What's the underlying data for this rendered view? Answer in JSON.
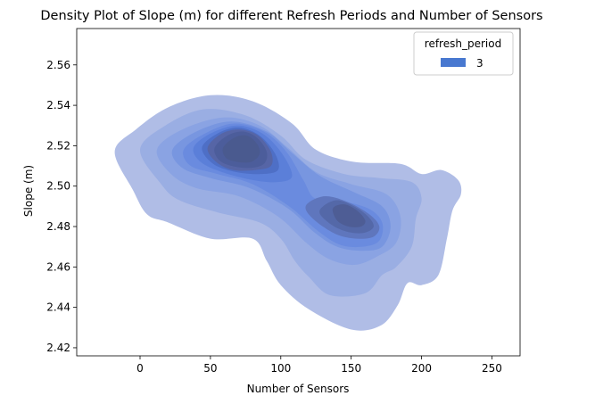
{
  "chart_data": {
    "type": "kde-density",
    "title": "Density Plot of Slope (m) for different Refresh Periods and Number of Sensors",
    "xlabel": "Number of Sensors",
    "ylabel": "Slope (m)",
    "xlim": [
      -45,
      270
    ],
    "ylim": [
      2.416,
      2.578
    ],
    "xticks": [
      0,
      50,
      100,
      150,
      200,
      250
    ],
    "yticks": [
      2.42,
      2.44,
      2.46,
      2.48,
      2.5,
      2.52,
      2.54,
      2.56
    ],
    "grid": false,
    "legend": {
      "title": "refresh_period",
      "position": "top-right",
      "entries": [
        {
          "label": "3",
          "color": "#4878d0"
        }
      ]
    },
    "series": [
      {
        "name": "3",
        "color": "#4878d0",
        "levels": [
          {
            "level": 1,
            "color": "#b0bde6",
            "points": [
              [
                -18,
                2.517
              ],
              [
                -3,
                2.528
              ],
              [
                20,
                2.539
              ],
              [
                50,
                2.545
              ],
              [
                80,
                2.542
              ],
              [
                108,
                2.531
              ],
              [
                125,
                2.518
              ],
              [
                152,
                2.512
              ],
              [
                185,
                2.511
              ],
              [
                200,
                2.506
              ],
              [
                214,
                2.508
              ],
              [
                226,
                2.503
              ],
              [
                228,
                2.496
              ],
              [
                222,
                2.488
              ],
              [
                218,
                2.474
              ],
              [
                212,
                2.456
              ],
              [
                200,
                2.451
              ],
              [
                190,
                2.452
              ],
              [
                183,
                2.441
              ],
              [
                171,
                2.431
              ],
              [
                150,
                2.429
              ],
              [
                120,
                2.439
              ],
              [
                100,
                2.451
              ],
              [
                90,
                2.463
              ],
              [
                80,
                2.474
              ],
              [
                50,
                2.474
              ],
              [
                20,
                2.482
              ],
              [
                5,
                2.486
              ],
              [
                -5,
                2.498
              ]
            ]
          },
          {
            "level": 2,
            "color": "#9aaee3",
            "points": [
              [
                0,
                2.518
              ],
              [
                18,
                2.53
              ],
              [
                45,
                2.538
              ],
              [
                75,
                2.535
              ],
              [
                100,
                2.525
              ],
              [
                118,
                2.513
              ],
              [
                145,
                2.506
              ],
              [
                170,
                2.504
              ],
              [
                193,
                2.502
              ],
              [
                200,
                2.494
              ],
              [
                196,
                2.484
              ],
              [
                193,
                2.47
              ],
              [
                182,
                2.46
              ],
              [
                172,
                2.456
              ],
              [
                160,
                2.447
              ],
              [
                135,
                2.446
              ],
              [
                120,
                2.455
              ],
              [
                110,
                2.463
              ],
              [
                100,
                2.474
              ],
              [
                85,
                2.482
              ],
              [
                55,
                2.487
              ],
              [
                28,
                2.493
              ],
              [
                15,
                2.501
              ]
            ]
          },
          {
            "level": 3,
            "color": "#8aa3e3",
            "points": [
              [
                12,
                2.518
              ],
              [
                30,
                2.528
              ],
              [
                60,
                2.534
              ],
              [
                85,
                2.53
              ],
              [
                105,
                2.519
              ],
              [
                125,
                2.507
              ],
              [
                150,
                2.501
              ],
              [
                175,
                2.496
              ],
              [
                185,
                2.485
              ],
              [
                182,
                2.472
              ],
              [
                168,
                2.465
              ],
              [
                152,
                2.461
              ],
              [
                134,
                2.464
              ],
              [
                118,
                2.472
              ],
              [
                98,
                2.485
              ],
              [
                70,
                2.495
              ],
              [
                40,
                2.499
              ],
              [
                22,
                2.506
              ]
            ]
          },
          {
            "level": 4,
            "color": "#7896e0",
            "points": [
              [
                23,
                2.518
              ],
              [
                40,
                2.527
              ],
              [
                65,
                2.532
              ],
              [
                90,
                2.527
              ],
              [
                107,
                2.517
              ],
              [
                128,
                2.505
              ],
              [
                152,
                2.497
              ],
              [
                172,
                2.49
              ],
              [
                178,
                2.48
              ],
              [
                172,
                2.47
              ],
              [
                158,
                2.468
              ],
              [
                140,
                2.47
              ],
              [
                124,
                2.477
              ],
              [
                105,
                2.489
              ],
              [
                78,
                2.499
              ],
              [
                50,
                2.504
              ],
              [
                30,
                2.509
              ]
            ]
          },
          {
            "level": 5,
            "color": "#6a8bdf",
            "points": [
              [
                31,
                2.518
              ],
              [
                46,
                2.526
              ],
              [
                67,
                2.531
              ],
              [
                88,
                2.527
              ],
              [
                104,
                2.517
              ],
              [
                116,
                2.503
              ],
              [
                124,
                2.494
              ],
              [
                140,
                2.493
              ],
              [
                162,
                2.489
              ],
              [
                172,
                2.482
              ],
              [
                170,
                2.473
              ],
              [
                158,
                2.47
              ],
              [
                142,
                2.471
              ],
              [
                126,
                2.478
              ],
              [
                106,
                2.49
              ],
              [
                80,
                2.501
              ],
              [
                55,
                2.506
              ],
              [
                36,
                2.51
              ]
            ]
          },
          {
            "level": 6,
            "color": "#5b7fd9",
            "points": [
              [
                38,
                2.519
              ],
              [
                50,
                2.526
              ],
              [
                69,
                2.53
              ],
              [
                87,
                2.526
              ],
              [
                101,
                2.516
              ],
              [
                108,
                2.505
              ],
              [
                98,
                2.502
              ],
              [
                80,
                2.503
              ],
              [
                58,
                2.507
              ],
              [
                43,
                2.512
              ]
            ]
          },
          {
            "level": 7,
            "color": "#4e6fc6",
            "points": [
              [
                44,
                2.519
              ],
              [
                55,
                2.526
              ],
              [
                70,
                2.529
              ],
              [
                85,
                2.525
              ],
              [
                96,
                2.516
              ],
              [
                98,
                2.508
              ],
              [
                86,
                2.506
              ],
              [
                68,
                2.507
              ],
              [
                52,
                2.511
              ]
            ]
          },
          {
            "level": 8,
            "color": "#5665a6",
            "points": [
              [
                48,
                2.519
              ],
              [
                58,
                2.526
              ],
              [
                71,
                2.528
              ],
              [
                84,
                2.525
              ],
              [
                93,
                2.517
              ],
              [
                93,
                2.51
              ],
              [
                82,
                2.508
              ],
              [
                66,
                2.508
              ],
              [
                54,
                2.512
              ]
            ]
          },
          {
            "level": 9,
            "color": "#4c5d9b",
            "points": [
              [
                53,
                2.519
              ],
              [
                62,
                2.525
              ],
              [
                73,
                2.527
              ],
              [
                83,
                2.524
              ],
              [
                90,
                2.517
              ],
              [
                88,
                2.511
              ],
              [
                78,
                2.509
              ],
              [
                65,
                2.51
              ],
              [
                56,
                2.513
              ]
            ]
          },
          {
            "level": 10,
            "color": "#4a5a8f",
            "points": [
              [
                59,
                2.519
              ],
              [
                67,
                2.524
              ],
              [
                76,
                2.525
              ],
              [
                83,
                2.521
              ],
              [
                85,
                2.516
              ],
              [
                79,
                2.512
              ],
              [
                69,
                2.512
              ],
              [
                61,
                2.514
              ]
            ]
          },
          {
            "level": 8,
            "color": "#5f76bd",
            "points": [
              [
                120,
                2.492
              ],
              [
                132,
                2.495
              ],
              [
                148,
                2.492
              ],
              [
                163,
                2.486
              ],
              [
                170,
                2.48
              ],
              [
                166,
                2.475
              ],
              [
                154,
                2.474
              ],
              [
                140,
                2.476
              ],
              [
                126,
                2.482
              ],
              [
                118,
                2.488
              ]
            ]
          },
          {
            "level": 9,
            "color": "#5468a8",
            "points": [
              [
                130,
                2.49
              ],
              [
                140,
                2.493
              ],
              [
                152,
                2.49
              ],
              [
                162,
                2.485
              ],
              [
                166,
                2.48
              ],
              [
                160,
                2.477
              ],
              [
                150,
                2.477
              ],
              [
                138,
                2.48
              ],
              [
                128,
                2.486
              ]
            ]
          },
          {
            "level": 10,
            "color": "#4e5d95",
            "points": [
              [
                137,
                2.489
              ],
              [
                145,
                2.491
              ],
              [
                154,
                2.488
              ],
              [
                160,
                2.483
              ],
              [
                157,
                2.48
              ],
              [
                148,
                2.48
              ],
              [
                140,
                2.483
              ]
            ]
          }
        ]
      }
    ]
  }
}
